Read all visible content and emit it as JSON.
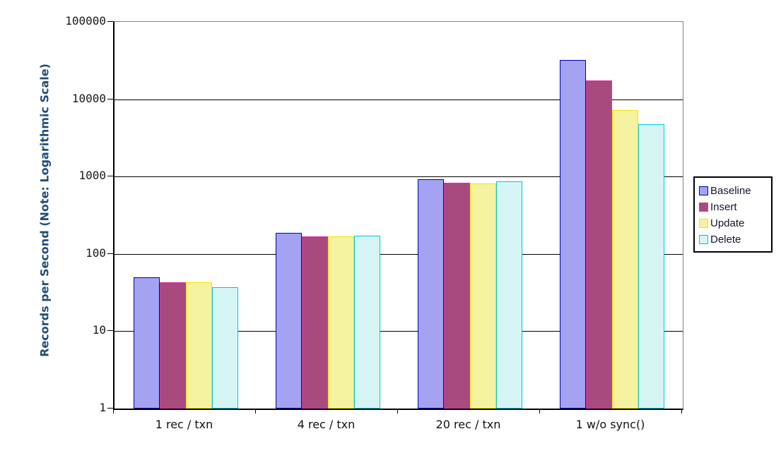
{
  "chart_data": {
    "type": "bar",
    "title": "",
    "xlabel": "",
    "ylabel": "Records per Second (Note: Logarithmic Scale)",
    "y_scale": "logarithmic",
    "ylim": [
      1,
      100000
    ],
    "y_ticks": [
      1,
      10,
      100,
      1000,
      10000,
      100000
    ],
    "categories": [
      "1 rec / txn",
      "4 rec / txn",
      "20 rec / txn",
      "1 w/o sync()"
    ],
    "series": [
      {
        "name": "Baseline",
        "values": [
          50,
          186,
          920,
          32000
        ],
        "fill": "#A3A3F2",
        "border": "#0000B4"
      },
      {
        "name": "Insert",
        "values": [
          43,
          170,
          830,
          17600
        ],
        "fill": "#A84A7E",
        "border": "#D6369B"
      },
      {
        "name": "Update",
        "values": [
          43,
          169,
          815,
          7300
        ],
        "fill": "#F5F2A0",
        "border": "#F0E400"
      },
      {
        "name": "Delete",
        "values": [
          37,
          173,
          860,
          4800
        ],
        "fill": "#D5F5F5",
        "border": "#00C4E8"
      }
    ],
    "legend_position": "right",
    "grid": true,
    "colors": {
      "axis_title": "#1F4E79",
      "tick_label": "#1A1A1A",
      "gridline": "#000000",
      "plot_border": "#808080"
    }
  }
}
